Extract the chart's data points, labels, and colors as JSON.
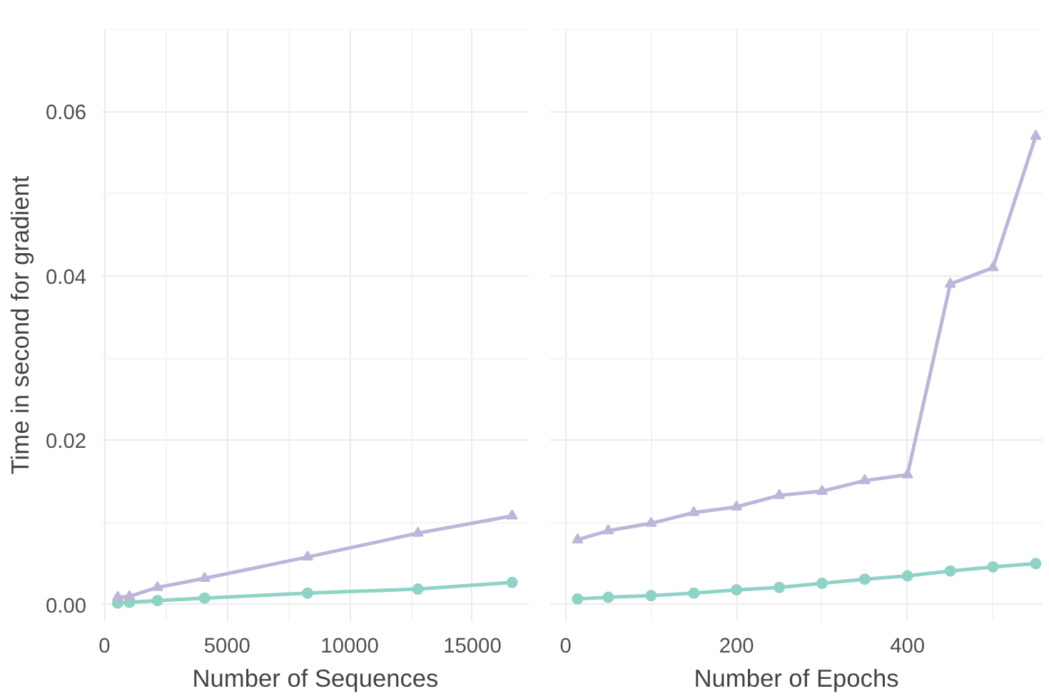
{
  "chart_data": [
    {
      "type": "line",
      "xlabel": "Number of Sequences",
      "ylabel": "Time in second for gradient",
      "x": [
        540,
        1020,
        2160,
        4080,
        8280,
        12780,
        16620
      ],
      "xlim": [
        -100,
        17300
      ],
      "xticks": [
        0,
        5000,
        10000,
        15000
      ],
      "ylim": [
        -0.002,
        0.07
      ],
      "yticks": [
        {
          "value": 0,
          "label": "0.00"
        },
        0.02,
        0.04,
        0.06
      ],
      "grid": true,
      "series": [
        {
          "color": "#8fd3c7",
          "marker": "circle",
          "values": [
            0.0002,
            0.0003,
            0.0005,
            0.0008,
            0.0014,
            0.0019,
            0.0027
          ]
        },
        {
          "color": "#bdb6da",
          "marker": "triangle",
          "values": [
            0.0009,
            0.001,
            0.0021,
            0.0032,
            0.0058,
            0.0087,
            0.0108
          ]
        }
      ]
    },
    {
      "type": "line",
      "xlabel": "Number of Epochs",
      "x": [
        14,
        50,
        100,
        150,
        200,
        250,
        300,
        350,
        400,
        450,
        500,
        550
      ],
      "xlim": [
        -18,
        558
      ],
      "xticks": [
        0,
        200,
        400
      ],
      "ylim": [
        -0.002,
        0.07
      ],
      "yticks": [
        0,
        0.02,
        0.04,
        0.06
      ],
      "grid": true,
      "tick_labels": "x",
      "series": [
        {
          "color": "#8fd3c7",
          "marker": "circle",
          "values": [
            0.0007,
            0.0009,
            0.0011,
            0.0014,
            0.0018,
            0.0021,
            0.0026,
            0.0031,
            0.0035,
            0.0041,
            0.0046,
            0.005
          ]
        },
        {
          "color": "#bdb6da",
          "marker": "triangle",
          "values": [
            0.0079,
            0.009,
            0.0099,
            0.0112,
            0.0119,
            0.0133,
            0.0138,
            0.0151,
            0.0158,
            0.039,
            0.041,
            0.057
          ]
        }
      ]
    }
  ]
}
